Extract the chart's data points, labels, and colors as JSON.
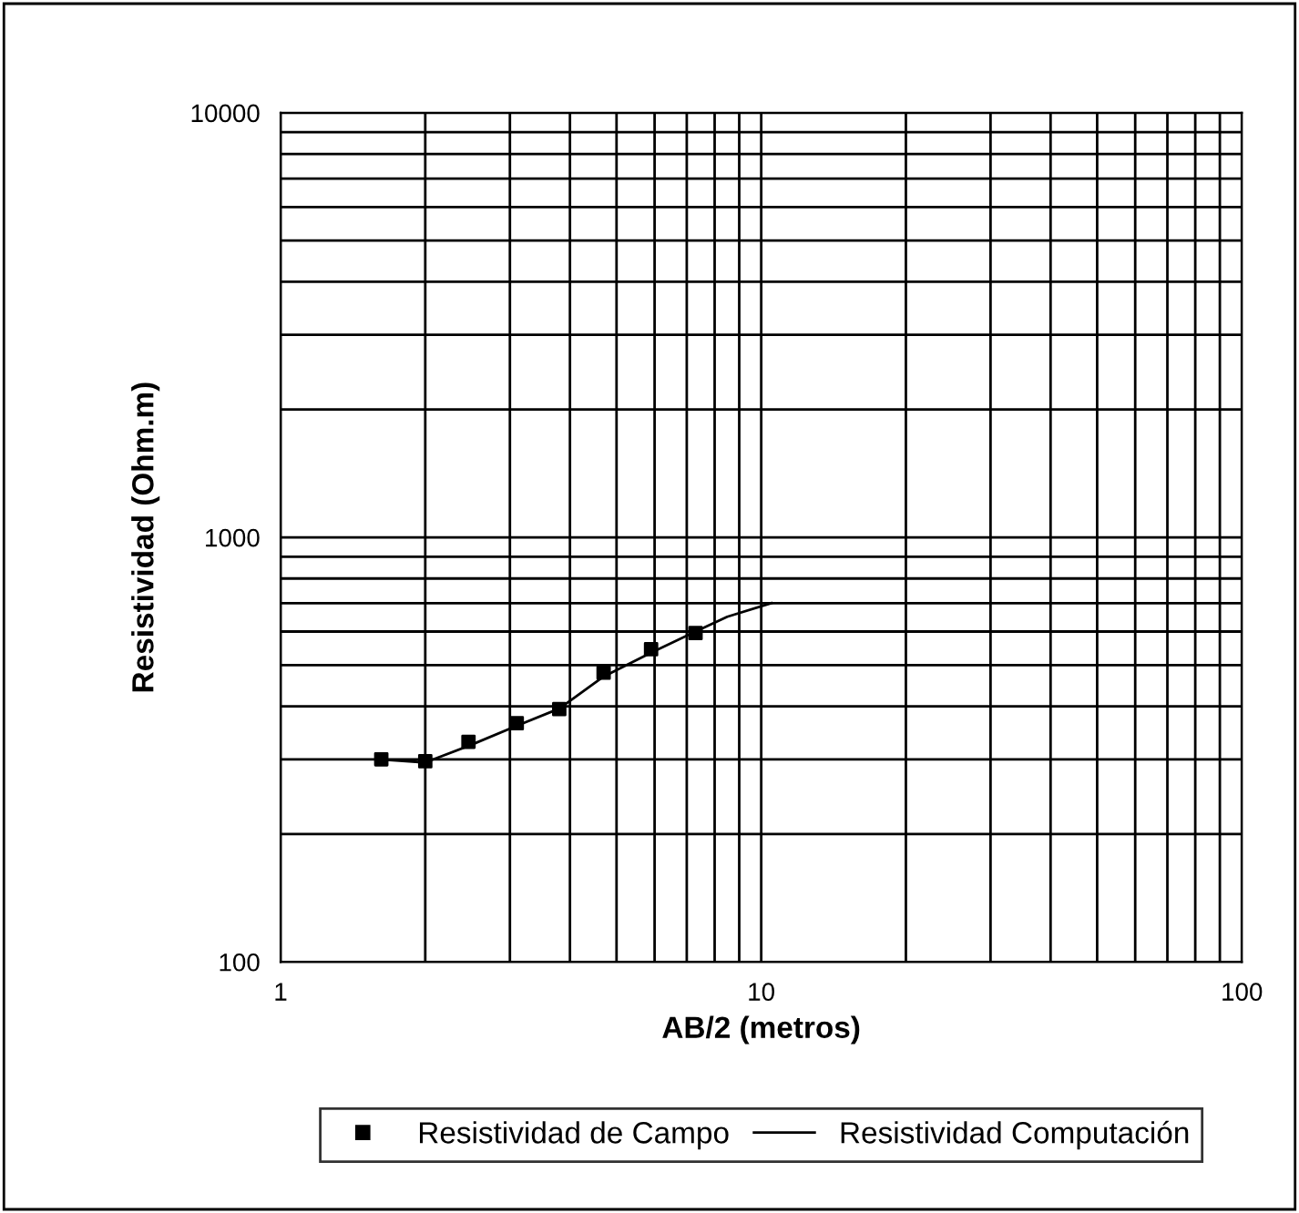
{
  "chart_data": {
    "type": "line",
    "xlabel": "AB/2 (metros)",
    "ylabel": "Resistividad (Ohm.m)",
    "log": "xy",
    "xlim": [
      1,
      100
    ],
    "ylim": [
      100,
      10000
    ],
    "xticks": [
      1,
      {
        "value": 2,
        "label": null
      },
      {
        "value": 3,
        "label": null
      },
      {
        "value": 4,
        "label": null
      },
      {
        "value": 5,
        "label": null
      },
      {
        "value": 6,
        "label": null
      },
      {
        "value": 7,
        "label": null
      },
      {
        "value": 8,
        "label": null
      },
      {
        "value": 9,
        "label": null
      },
      10,
      {
        "value": 20,
        "label": null
      },
      {
        "value": 30,
        "label": null
      },
      {
        "value": 40,
        "label": null
      },
      {
        "value": 50,
        "label": null
      },
      {
        "value": 60,
        "label": null
      },
      {
        "value": 70,
        "label": null
      },
      {
        "value": 80,
        "label": null
      },
      {
        "value": 90,
        "label": null
      },
      100
    ],
    "yticks": [
      100,
      {
        "value": 200,
        "label": null
      },
      {
        "value": 300,
        "label": null
      },
      {
        "value": 400,
        "label": null
      },
      {
        "value": 500,
        "label": null
      },
      {
        "value": 600,
        "label": null
      },
      {
        "value": 700,
        "label": null
      },
      {
        "value": 800,
        "label": null
      },
      {
        "value": 900,
        "label": null
      },
      1000,
      {
        "value": 2000,
        "label": null
      },
      {
        "value": 3000,
        "label": null
      },
      {
        "value": 4000,
        "label": null
      },
      {
        "value": 5000,
        "label": null
      },
      {
        "value": 6000,
        "label": null
      },
      {
        "value": 7000,
        "label": null
      },
      {
        "value": 8000,
        "label": null
      },
      {
        "value": 9000,
        "label": null
      },
      10000
    ],
    "grid": true,
    "legend": "bottom",
    "series": [
      {
        "name": "Resistividad de Campo",
        "type": "scatter",
        "marker": "square",
        "color": "#000000",
        "x": [
          1.62,
          2.0,
          2.46,
          3.1,
          3.8,
          4.7,
          5.9,
          7.3
        ],
        "values": [
          300,
          297,
          330,
          365,
          394,
          480,
          545,
          595
        ]
      },
      {
        "name": "Resistividad Computación",
        "marker": "none",
        "line_style": "solid",
        "color": "#000000",
        "x": [
          1.62,
          2.0,
          2.5,
          3.1,
          3.8,
          4.7,
          5.9,
          7.3,
          8.5,
          10.5
        ],
        "values": [
          300,
          295,
          325,
          360,
          395,
          470,
          535,
          600,
          650,
          700
        ]
      }
    ]
  }
}
